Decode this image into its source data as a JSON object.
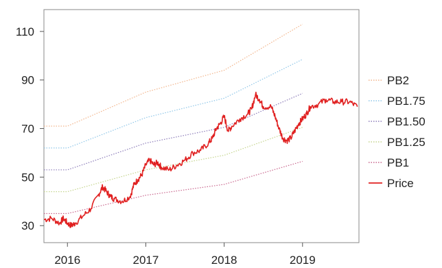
{
  "chart_data": {
    "type": "line",
    "xlim": [
      2015.7,
      2019.72
    ],
    "ylim": [
      23,
      119
    ],
    "x_ticks": [
      {
        "value": 2016,
        "label": "2016"
      },
      {
        "value": 2017,
        "label": "2017"
      },
      {
        "value": 2018,
        "label": "2018"
      },
      {
        "value": 2019,
        "label": "2019"
      }
    ],
    "y_ticks": [
      {
        "value": 30,
        "label": "30"
      },
      {
        "value": 50,
        "label": "50"
      },
      {
        "value": 70,
        "label": "70"
      },
      {
        "value": 90,
        "label": "90"
      },
      {
        "value": 110,
        "label": "110"
      }
    ],
    "legend_position": "right",
    "series": [
      {
        "name": "PB2",
        "color": "#f2b48a",
        "style": "dotted",
        "x": [
          2015.7,
          2016.0,
          2017.0,
          2018.0,
          2019.0
        ],
        "y": [
          71,
          71,
          85,
          94,
          113
        ]
      },
      {
        "name": "PB1.75",
        "color": "#8ec6e8",
        "style": "dotted",
        "x": [
          2015.7,
          2016.0,
          2017.0,
          2018.0,
          2019.0
        ],
        "y": [
          62,
          62,
          74.5,
          82.5,
          98.5
        ]
      },
      {
        "name": "PB1.50",
        "color": "#8a7ab8",
        "style": "dotted",
        "x": [
          2015.7,
          2016.0,
          2017.0,
          2018.0,
          2019.0
        ],
        "y": [
          53,
          53,
          64,
          70.5,
          84.5
        ]
      },
      {
        "name": "PB1.25",
        "color": "#c4d48c",
        "style": "dotted",
        "x": [
          2015.7,
          2016.0,
          2017.0,
          2018.0,
          2019.0
        ],
        "y": [
          44,
          44,
          53,
          59,
          70.5
        ]
      },
      {
        "name": "PB1",
        "color": "#c8648c",
        "style": "dotted",
        "x": [
          2015.7,
          2016.0,
          2017.0,
          2018.0,
          2019.0
        ],
        "y": [
          35,
          35,
          42.5,
          47,
          56.5
        ]
      },
      {
        "name": "Price",
        "color": "#e02020",
        "style": "solid",
        "x": [
          2015.7,
          2015.8,
          2015.9,
          2015.95,
          2016.0,
          2016.05,
          2016.1,
          2016.2,
          2016.3,
          2016.4,
          2016.45,
          2016.5,
          2016.55,
          2016.6,
          2016.7,
          2016.8,
          2016.85,
          2016.9,
          2016.95,
          2017.0,
          2017.05,
          2017.1,
          2017.15,
          2017.2,
          2017.3,
          2017.4,
          2017.5,
          2017.6,
          2017.7,
          2017.8,
          2017.85,
          2017.9,
          2017.95,
          2018.0,
          2018.05,
          2018.1,
          2018.2,
          2018.3,
          2018.35,
          2018.4,
          2018.45,
          2018.5,
          2018.6,
          2018.65,
          2018.7,
          2018.75,
          2018.8,
          2018.85,
          2018.9,
          2018.95,
          2019.0,
          2019.05,
          2019.1,
          2019.2,
          2019.3,
          2019.4,
          2019.5,
          2019.6,
          2019.7
        ],
        "y": [
          32.5,
          33,
          31,
          33,
          31,
          30,
          31,
          34,
          37,
          43,
          46,
          44,
          42,
          41,
          40,
          42,
          47,
          49,
          51,
          55,
          57,
          55,
          56,
          54,
          53,
          55,
          57,
          60,
          61,
          64,
          66,
          70,
          72,
          75,
          69,
          71,
          74,
          76,
          78,
          84,
          82,
          79,
          79,
          75,
          70,
          66,
          65,
          66,
          69,
          72,
          74,
          76,
          79,
          80,
          82,
          81,
          81,
          81,
          79
        ]
      }
    ]
  }
}
